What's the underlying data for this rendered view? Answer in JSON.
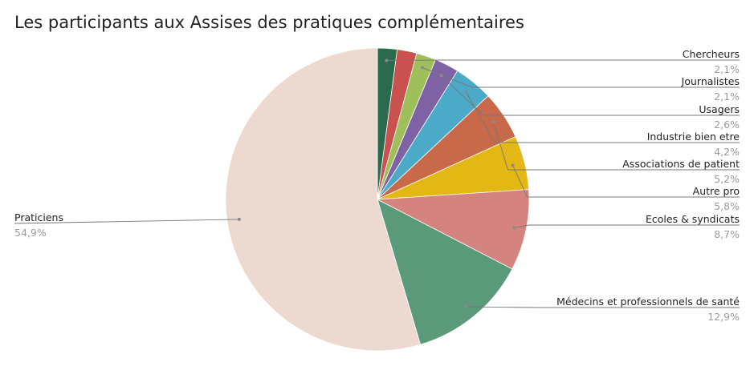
{
  "chart_data": {
    "type": "pie",
    "title": "Les participants aux Assises des pratiques complémentaires",
    "start": "12 o'clock",
    "direction": "clockwise",
    "legend": "none",
    "slices": [
      {
        "label": "Chercheurs",
        "value_label": "2,1%",
        "value": 2.1,
        "color": "#2a6b4e"
      },
      {
        "label": "",
        "value_label": "",
        "value": 2.1,
        "color": "#c9524f"
      },
      {
        "label": "Journalistes",
        "value_label": "2,1%",
        "value": 2.1,
        "color": "#9fbf5a"
      },
      {
        "label": "Usagers",
        "value_label": "2,6%",
        "value": 2.6,
        "color": "#7e62a3"
      },
      {
        "label": "Industrie bien etre",
        "value_label": "4,2%",
        "value": 4.2,
        "color": "#4aaac8"
      },
      {
        "label": "Associations de patient",
        "value_label": "5,2%",
        "value": 5.2,
        "color": "#c8694a"
      },
      {
        "label": "Autre pro",
        "value_label": "5,8%",
        "value": 5.8,
        "color": "#e3b815"
      },
      {
        "label": "Ecoles & syndicats",
        "value_label": "8,7%",
        "value": 8.7,
        "color": "#d4837e"
      },
      {
        "label": "Médecins et professionnels de santé",
        "value_label": "12,9%",
        "value": 12.9,
        "color": "#5a9a7a"
      },
      {
        "label": "Praticiens",
        "value_label": "54,9%",
        "value": 54.9,
        "color": "#ecd9cf"
      }
    ]
  }
}
